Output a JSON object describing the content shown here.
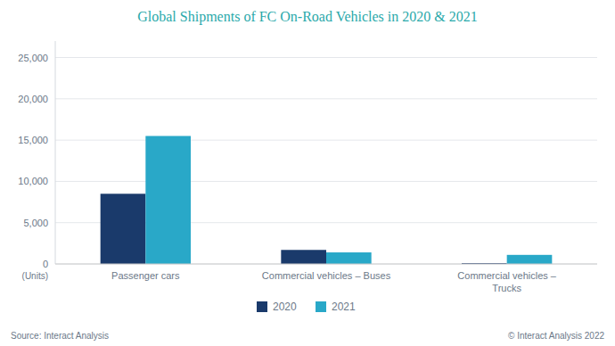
{
  "chart_data": {
    "type": "bar",
    "title": "Global Shipments of FC On-Road Vehicles in 2020 & 2021",
    "ylabel": "(Units)",
    "categories": [
      "Passenger cars",
      "Commercial vehicles – Buses",
      "Commercial vehicles –\nTrucks"
    ],
    "series": [
      {
        "name": "2020",
        "color": "#1a3a6b",
        "values": [
          8500,
          1700,
          100
        ]
      },
      {
        "name": "2021",
        "color": "#29a8c8",
        "values": [
          15500,
          1400,
          1100
        ]
      }
    ],
    "ylim": [
      0,
      27000
    ],
    "yticks": [
      0,
      {
        "value": 5000,
        "label": "5,000"
      },
      {
        "value": 10000,
        "label": "10,000"
      },
      {
        "value": 15000,
        "label": "15,000"
      },
      {
        "value": 20000,
        "label": "20,000"
      },
      {
        "value": 25000,
        "label": "25,000"
      }
    ],
    "grid": true,
    "legend": "bottom",
    "annotations": [
      "Source: Interact Analysis",
      "© Interact Analysis 2022"
    ]
  }
}
